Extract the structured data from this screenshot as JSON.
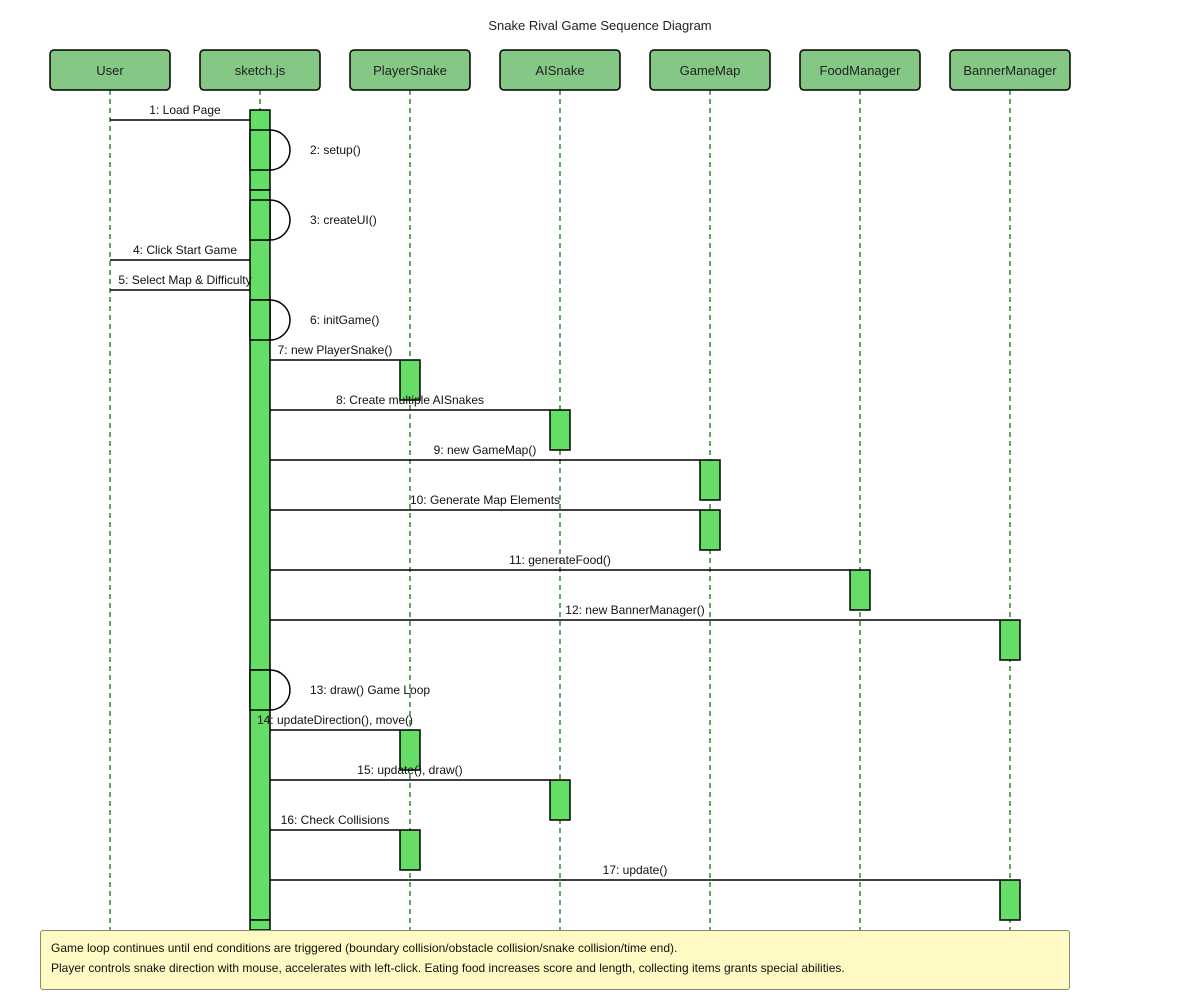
{
  "title": "Snake Rival Game Sequence Diagram",
  "colors": {
    "participant_fill": "#85c785",
    "activation_fill": "#66dd66",
    "lifeline": "#2e8b2e",
    "line": "#000000",
    "note_fill": "#fff9c4"
  },
  "participants": [
    "User",
    "sketch.js",
    "PlayerSnake",
    "AISnake",
    "GameMap",
    "FoodManager",
    "BannerManager"
  ],
  "messages": [
    {
      "label": "1: Load Page",
      "from": "User",
      "to": "sketch.js"
    },
    {
      "label": "2: setup()",
      "from": "sketch.js",
      "to": "sketch.js"
    },
    {
      "label": "3: createUI()",
      "from": "sketch.js",
      "to": "sketch.js"
    },
    {
      "label": "4: Click Start Game",
      "from": "User",
      "to": "sketch.js"
    },
    {
      "label": "5: Select Map & Difficulty",
      "from": "User",
      "to": "sketch.js"
    },
    {
      "label": "6: initGame()",
      "from": "sketch.js",
      "to": "sketch.js"
    },
    {
      "label": "7: new PlayerSnake()",
      "from": "sketch.js",
      "to": "PlayerSnake"
    },
    {
      "label": "8: Create multiple AISnakes",
      "from": "sketch.js",
      "to": "AISnake"
    },
    {
      "label": "9: new GameMap()",
      "from": "sketch.js",
      "to": "GameMap"
    },
    {
      "label": "10: Generate Map Elements",
      "from": "sketch.js",
      "to": "GameMap"
    },
    {
      "label": "11: generateFood()",
      "from": "sketch.js",
      "to": "FoodManager"
    },
    {
      "label": "12: new BannerManager()",
      "from": "sketch.js",
      "to": "BannerManager"
    },
    {
      "label": "13: draw() Game Loop",
      "from": "sketch.js",
      "to": "sketch.js"
    },
    {
      "label": "14: updateDirection(), move()",
      "from": "sketch.js",
      "to": "PlayerSnake"
    },
    {
      "label": "15: update(), draw()",
      "from": "sketch.js",
      "to": "AISnake"
    },
    {
      "label": "16: Check Collisions",
      "from": "sketch.js",
      "to": "PlayerSnake"
    },
    {
      "label": "17: update()",
      "from": "sketch.js",
      "to": "BannerManager"
    }
  ],
  "note": {
    "lines": [
      "Game loop continues until end conditions are triggered (boundary collision/obstacle collision/snake collision/time end).",
      "Player controls snake direction with mouse, accelerates with left-click. Eating food increases score and length, collecting items grants special abilities."
    ]
  }
}
